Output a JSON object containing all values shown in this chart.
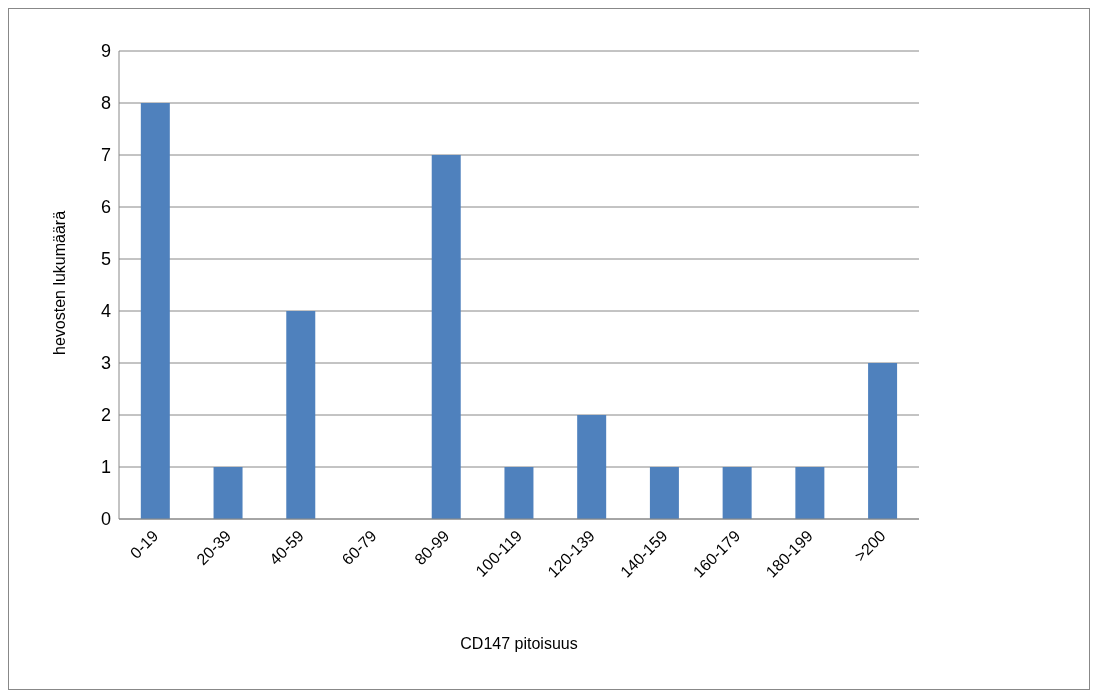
{
  "chart_data": {
    "type": "bar",
    "xlabel": "CD147 pitoisuus",
    "ylabel": "hevosten lukumäärä",
    "categories": [
      "0-19",
      "20-39",
      "40-59",
      "60-79",
      "80-99",
      "100-119",
      "120-139",
      "140-159",
      "160-179",
      "180-199",
      ">200"
    ],
    "values": [
      8,
      1,
      4,
      0,
      7,
      1,
      2,
      1,
      1,
      1,
      3
    ],
    "color": "#4f81bd",
    "ylim": [
      0,
      9
    ],
    "yticks": [
      0,
      1,
      2,
      3,
      4,
      5,
      6,
      7,
      8,
      9
    ],
    "grid": "y"
  }
}
